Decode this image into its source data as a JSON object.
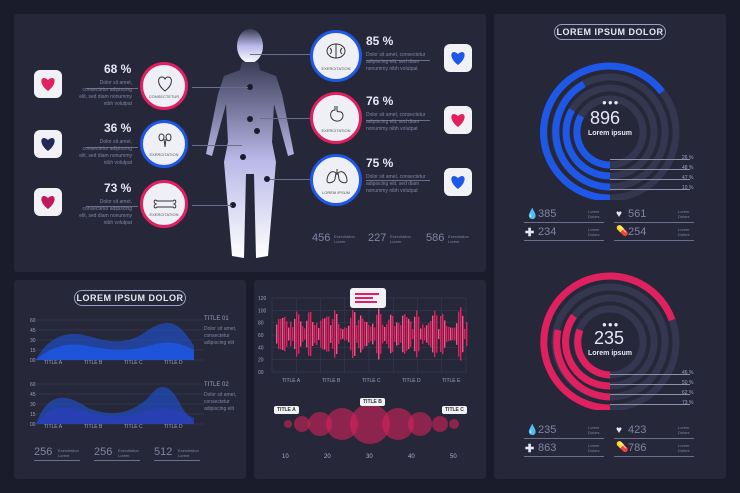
{
  "colors": {
    "blue": "#1e58e8",
    "pink": "#e0205f",
    "bg": "#1b1c2b",
    "panel": "#262839"
  },
  "lorem": "Dolor sit amet, consectetur adipiscing elit, sed diam nonummy nibh volutpat",
  "main": {
    "left": [
      {
        "pct": "68 %",
        "organ": "heart-icon",
        "label": "CONSECTETUR"
      },
      {
        "pct": "36 %",
        "organ": "kidney-icon",
        "label": "EXERCITATION"
      },
      {
        "pct": "73 %",
        "organ": "bone-icon",
        "label": "EXERCITATION"
      }
    ],
    "right": [
      {
        "pct": "85 %",
        "organ": "brain-icon",
        "label": "EXERCITATION"
      },
      {
        "pct": "76 %",
        "organ": "stomach-icon",
        "label": "EXERCITATION"
      },
      {
        "pct": "75 %",
        "organ": "lungs-icon",
        "label": "LOREM IPSUM"
      }
    ],
    "stats": [
      {
        "value": "456",
        "label": "Exercitation Lorem"
      },
      {
        "value": "227",
        "label": "Exercitation Lorem"
      },
      {
        "value": "586",
        "label": "Exercitation Lorem"
      }
    ]
  },
  "right_panel": {
    "title": "LOREM IPSUM DOLOR",
    "gauge1": {
      "value": "896",
      "label": "Lorem ipsum",
      "legend": [
        "26 %",
        "48 %",
        "47 %",
        "10 %"
      ]
    },
    "stats1": [
      {
        "icon": "drop-icon",
        "value": "385"
      },
      {
        "icon": "heart-icon",
        "value": "561"
      },
      {
        "icon": "cross-icon",
        "value": "234"
      },
      {
        "icon": "pill-icon",
        "value": "254"
      }
    ],
    "gauge2": {
      "value": "235",
      "label": "Lorem ipsum",
      "legend": [
        "46 %",
        "50 %",
        "62 %",
        "73 %"
      ]
    },
    "stats2": [
      {
        "icon": "drop-icon",
        "value": "235"
      },
      {
        "icon": "heart-icon",
        "value": "423"
      },
      {
        "icon": "cross-icon",
        "value": "863"
      },
      {
        "icon": "pill-icon",
        "value": "786"
      }
    ],
    "stat_label": "Lorem Dolors"
  },
  "waves": {
    "title": "LOREM IPSUM DOLOR",
    "chart1": {
      "title": "TITLE 01",
      "yticks": [
        "60",
        "45",
        "30",
        "15",
        "00"
      ],
      "xticks": [
        "TITLE A",
        "TITLE B",
        "TITLE C",
        "TITLE D"
      ]
    },
    "chart2": {
      "title": "TITLE 02",
      "yticks": [
        "60",
        "45",
        "30",
        "15",
        "00"
      ],
      "xticks": [
        "TITLE A",
        "TITLE B",
        "TITLE C",
        "TITLE D"
      ]
    },
    "stats": [
      {
        "value": "256",
        "label": "Exercitation Lorem"
      },
      {
        "value": "256",
        "label": "Exercitation Lorem"
      },
      {
        "value": "512",
        "label": "Exercitation Lorem"
      }
    ],
    "side_text": "Dolor sit amet, consectetur adipiscing elit"
  },
  "chart_data": [
    {
      "type": "bar",
      "title": "",
      "xticks": [
        "TITLE A",
        "TITLE B",
        "TITLE C",
        "TITLE D",
        "TITLE E"
      ],
      "yticks": [
        "120",
        "100",
        "80",
        "60",
        "40",
        "20",
        "00"
      ],
      "ylim": [
        0,
        120
      ]
    },
    {
      "type": "scatter",
      "x": [
        10,
        20,
        30,
        40,
        50
      ],
      "xticks": [
        "10",
        "20",
        "30",
        "40",
        "50"
      ],
      "labels": [
        "TITLE A",
        "TITLE B",
        "TITLE C"
      ]
    }
  ]
}
